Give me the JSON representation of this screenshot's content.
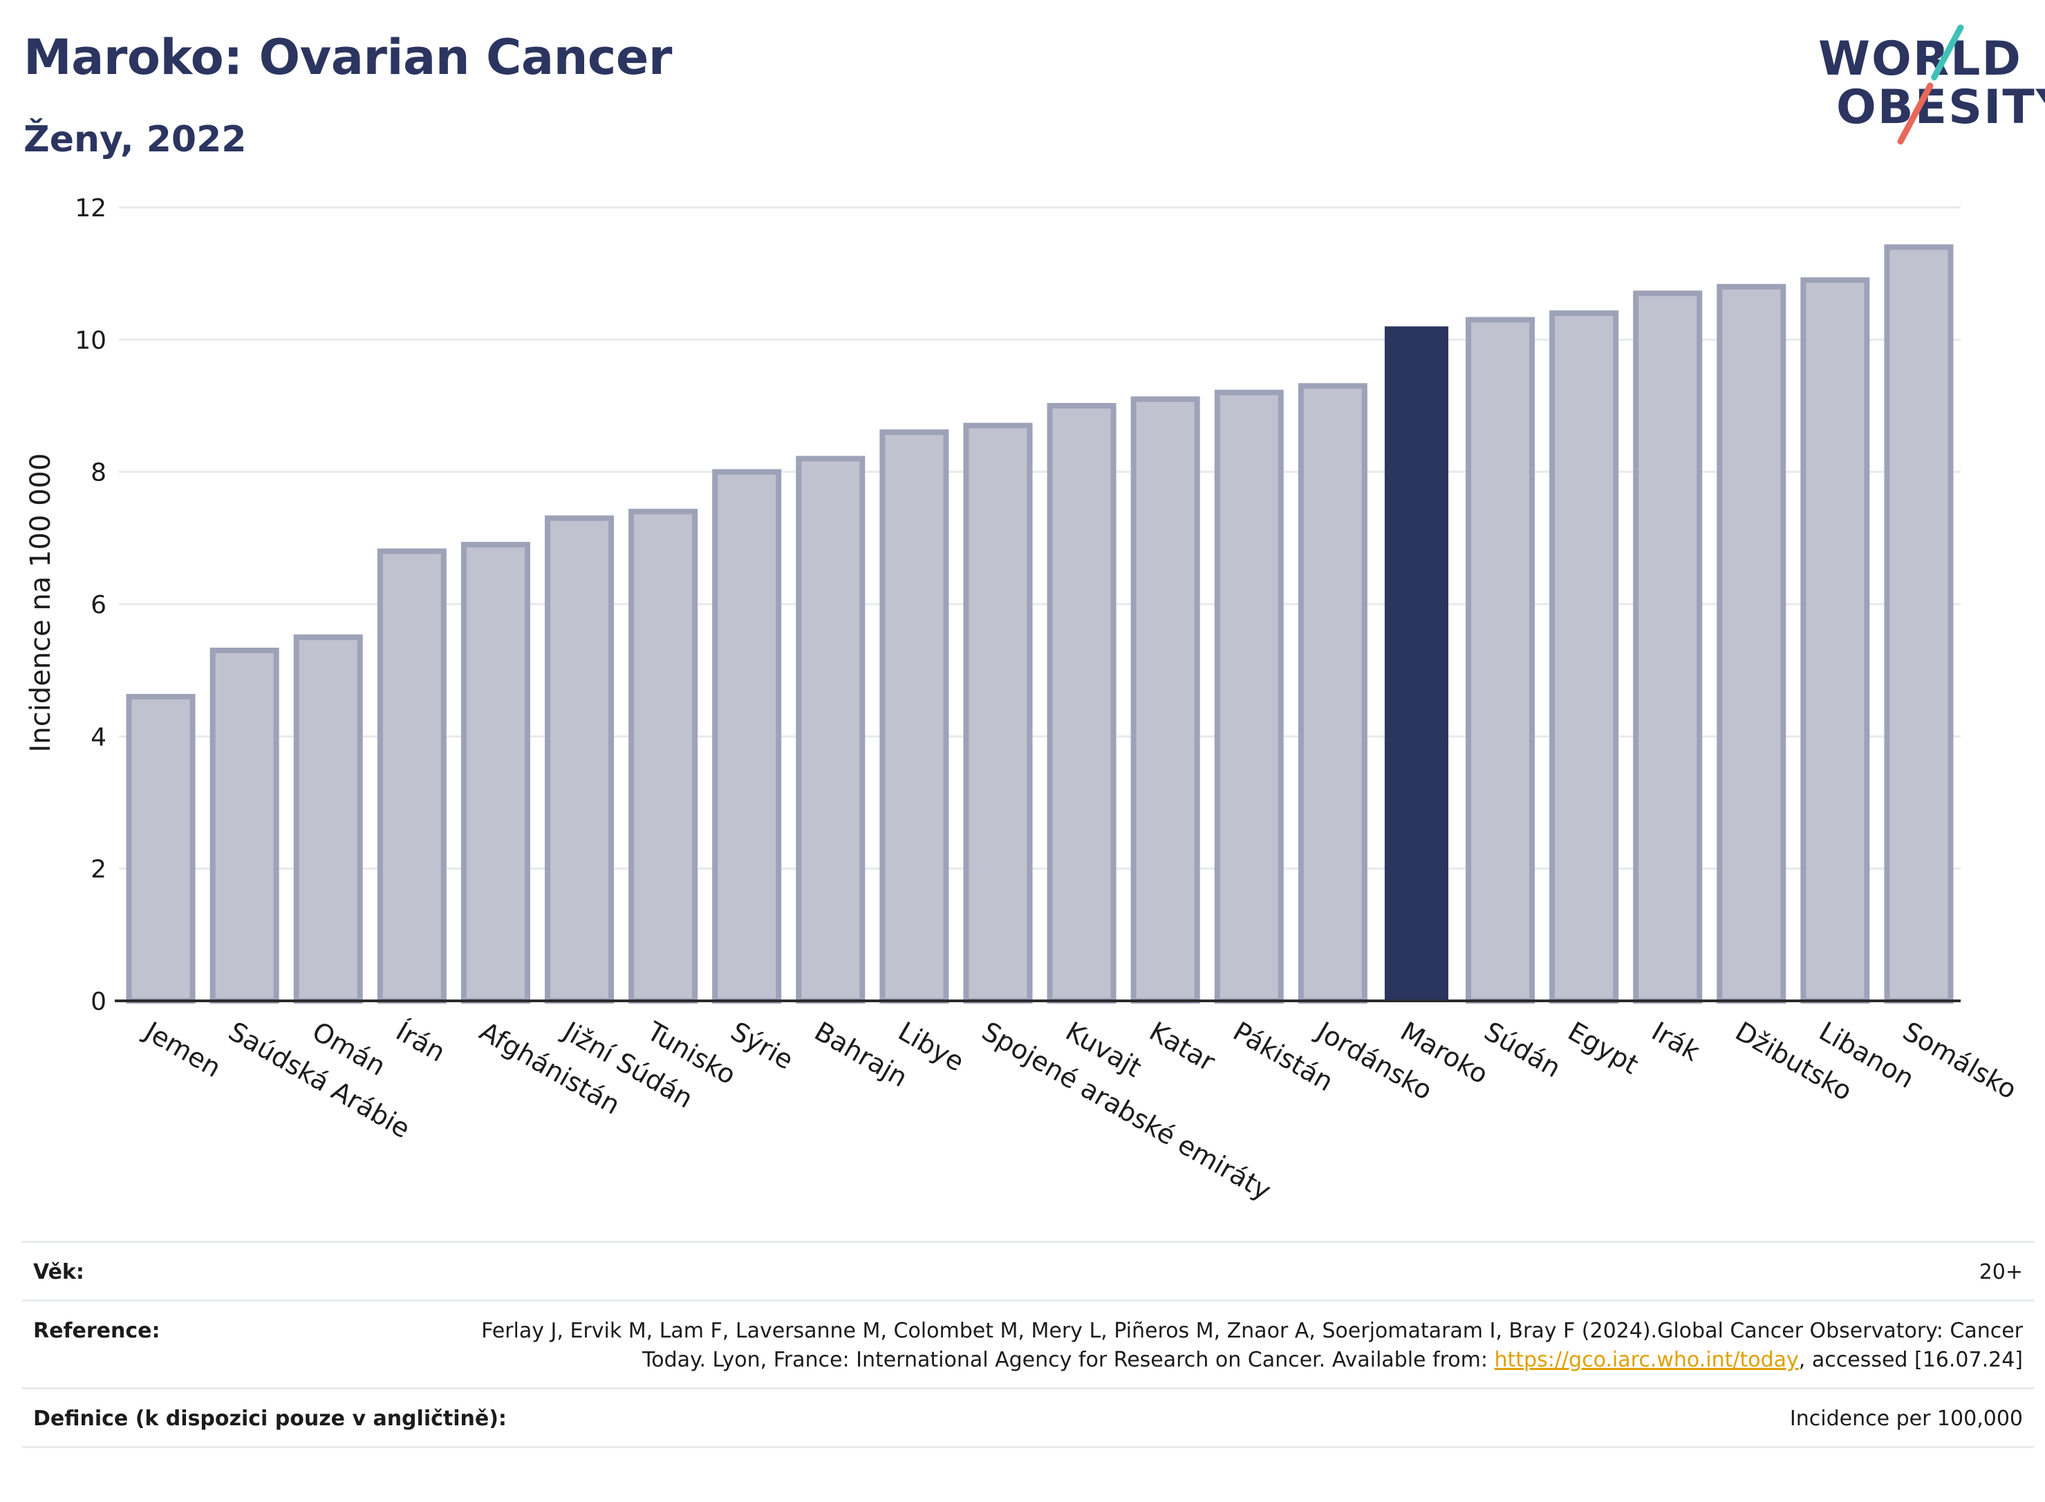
{
  "header": {
    "title": "Maroko: Ovarian Cancer",
    "subtitle": "Ženy, 2022"
  },
  "logo": {
    "line1": "WORLD",
    "line2": "OBESITY",
    "accent_colors": [
      "#3fc1b7",
      "#e8685a"
    ]
  },
  "colors": {
    "bar_default": "#c0c2cf",
    "bar_default_border": "#9ea2b8",
    "bar_highlight": "#2a3560",
    "text_primary": "#2b3560",
    "link": "#e0a000"
  },
  "chart_data": {
    "type": "bar",
    "title": "",
    "xlabel": "",
    "ylabel": "Incidence na 100 000",
    "ylim": [
      0,
      12
    ],
    "yticks": [
      0,
      2,
      4,
      6,
      8,
      10,
      12
    ],
    "grid": true,
    "highlight": "Maroko",
    "categories": [
      "Jemen",
      "Saúdská Arábie",
      "Omán",
      "Írán",
      "Afghánistán",
      "Jižní Súdán",
      "Tunisko",
      "Sýrie",
      "Bahrajn",
      "Libye",
      "Spojené arabské emiráty",
      "Kuvajt",
      "Katar",
      "Pákistán",
      "Jordánsko",
      "Maroko",
      "Súdán",
      "Egypt",
      "Irák",
      "Džibutsko",
      "Libanon",
      "Somálsko"
    ],
    "values": [
      4.6,
      5.3,
      5.5,
      6.8,
      6.9,
      7.3,
      7.4,
      8.0,
      8.2,
      8.6,
      8.7,
      9.0,
      9.1,
      9.2,
      9.3,
      10.2,
      10.3,
      10.4,
      10.7,
      10.8,
      10.9,
      11.4
    ]
  },
  "meta": {
    "age_label": "Věk:",
    "age_value": "20+",
    "reference_label": "Reference:",
    "reference_text": "Ferlay J, Ervik M, Lam F, Laversanne M, Colombet M, Mery L, Piñeros M, Znaor A, Soerjomataram I, Bray F (2024).Global Cancer Observatory: Cancer Today. Lyon, France: International Agency for Research on Cancer. Available from:",
    "reference_link": "https://gco.iarc.who.int/today",
    "reference_suffix": ", accessed [16.07.24]",
    "definition_label": "Definice (k dispozici pouze v angličtině):",
    "definition_value": "Incidence per 100,000"
  }
}
